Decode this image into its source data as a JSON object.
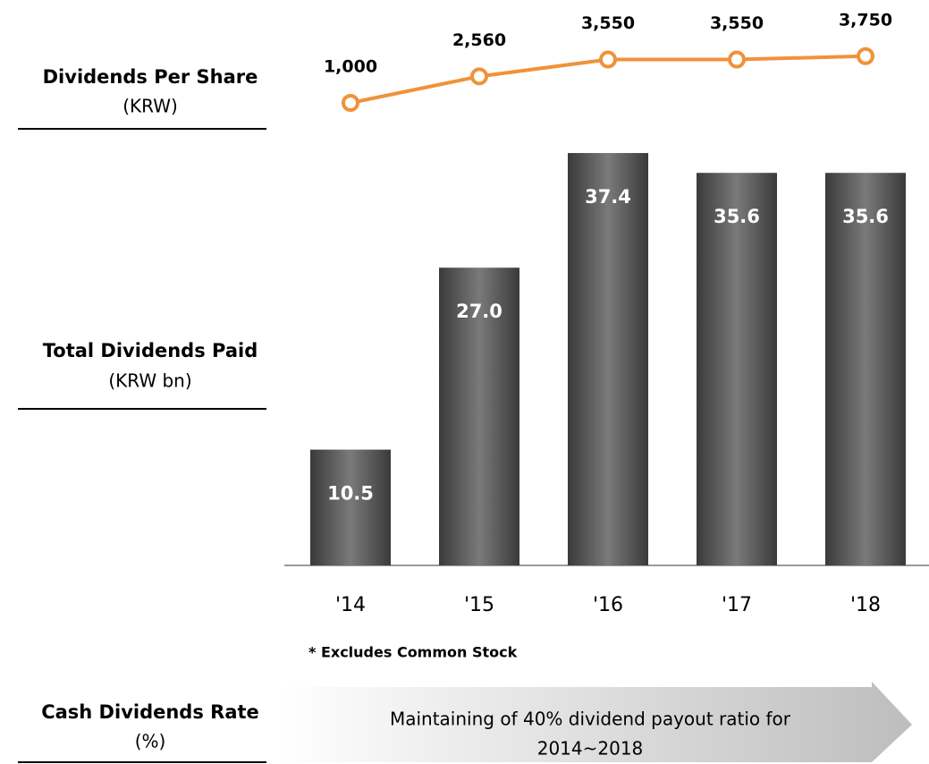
{
  "side_labels": [
    {
      "title": "Dividends Per Share",
      "unit": "(KRW)"
    },
    {
      "title": "Total Dividends Paid",
      "unit": "(KRW bn)"
    },
    {
      "title": "Cash Dividends Rate",
      "unit": "(%)"
    }
  ],
  "chart_data": [
    {
      "type": "line",
      "values": [
        1000,
        2560,
        3550,
        3550,
        3750
      ],
      "value_labels": [
        "1,000",
        "2,560",
        "3,550",
        "3,550",
        "3,750"
      ],
      "color": "#f0923a",
      "ylim": [
        0,
        4000
      ]
    },
    {
      "type": "bar",
      "categories": [
        "'14",
        "'15",
        "'16",
        "'17",
        "'18"
      ],
      "values": [
        10.5,
        27.0,
        37.4,
        35.6,
        35.6
      ],
      "value_labels": [
        "10.5",
        "27.0",
        "37.4",
        "35.6",
        "35.6"
      ],
      "color": "#4a4a4a",
      "ylim": [
        0,
        40
      ]
    }
  ],
  "footnote": "* Excludes Common Stock",
  "note": [
    "Maintaining of 40% dividend payout ratio for",
    "2014~2018"
  ]
}
